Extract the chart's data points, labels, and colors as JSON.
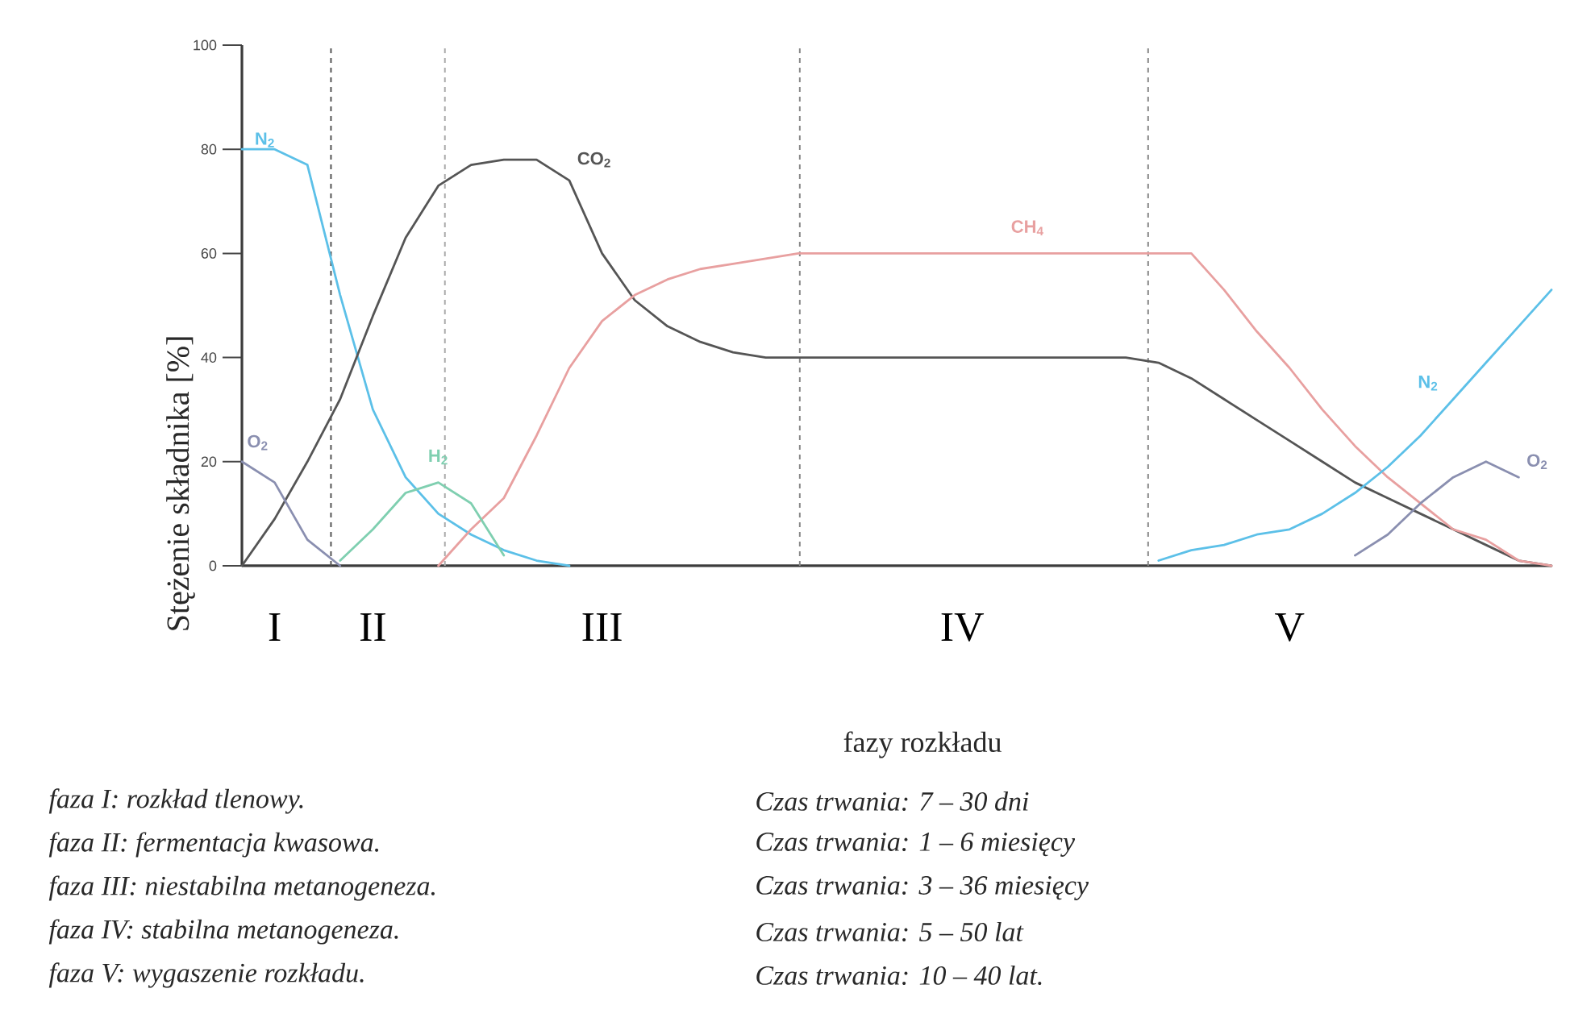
{
  "chart_data": {
    "type": "line",
    "ylabel": "Stężenie składnika [%]",
    "xlabel": "fazy rozkładu",
    "categories": [
      null,
      "I",
      null,
      null,
      "II",
      null,
      null,
      null,
      null,
      null,
      null,
      "III",
      null,
      null,
      null,
      null,
      null,
      null,
      null,
      null,
      null,
      null,
      "IV",
      null,
      null,
      null,
      null,
      null,
      null,
      null,
      null,
      null,
      "V",
      null,
      null,
      null,
      null,
      null,
      null,
      null,
      null
    ],
    "ylim": [
      0,
      100
    ],
    "yticks": [
      0,
      20,
      40,
      60,
      80,
      100
    ],
    "grid": "x",
    "legend": false,
    "marker": "none",
    "line_style": "solid",
    "series": [
      {
        "name": "N$_{2}$",
        "color": "#5cc0e8",
        "values": [
          80,
          80,
          77,
          52,
          30,
          17,
          10,
          6,
          3,
          1,
          0,
          null,
          null,
          null,
          null,
          null,
          null,
          null,
          null,
          null,
          null,
          null,
          null,
          null,
          null,
          null,
          null,
          null,
          null,
          null,
          null,
          null,
          null,
          null,
          null,
          null,
          null,
          null,
          null,
          null,
          null
        ]
      },
      {
        "name": "CO$_{2}$",
        "color": "#555555",
        "values": [
          0,
          9,
          20,
          32,
          48,
          63,
          73,
          77,
          78,
          78,
          74,
          60,
          51,
          46,
          43,
          41,
          40,
          40,
          40,
          40,
          40,
          40,
          40,
          40,
          40,
          40,
          40,
          40,
          39,
          36,
          32,
          28,
          24,
          20,
          16,
          13,
          10,
          7,
          4,
          1,
          0
        ]
      },
      {
        "name": "CH$_{4}$",
        "color": "#e8a0a0",
        "values": [
          null,
          null,
          null,
          null,
          null,
          null,
          0,
          7,
          13,
          25,
          38,
          47,
          52,
          55,
          57,
          58,
          59,
          60,
          60,
          60,
          60,
          60,
          60,
          60,
          60,
          60,
          60,
          60,
          60,
          60,
          53,
          45,
          38,
          30,
          23,
          17,
          12,
          7,
          5,
          1,
          0
        ]
      },
      {
        "name": "H$_{2}$",
        "color": "#7fcfb0",
        "values": [
          null,
          null,
          null,
          1,
          7,
          14,
          16,
          12,
          2,
          null,
          null,
          null,
          null,
          null,
          null,
          null,
          null,
          null,
          null,
          null,
          null,
          null,
          null,
          null,
          null,
          null,
          null,
          null,
          null,
          null,
          null,
          null,
          null,
          null,
          null,
          null,
          null,
          null,
          null,
          null,
          null
        ]
      },
      {
        "name": "O$_{2}$",
        "color": "#8a8fb0",
        "values": [
          20,
          16,
          5,
          0,
          null,
          null,
          null,
          null,
          null,
          null,
          null,
          null,
          null,
          null,
          null,
          null,
          null,
          null,
          null,
          null,
          null,
          null,
          null,
          null,
          null,
          null,
          null,
          null,
          null,
          null,
          null,
          null,
          null,
          null,
          null,
          null,
          null,
          null,
          null,
          null,
          null
        ]
      },
      {
        "name": "N$_{2}$",
        "color": "#5cc0e8",
        "values": [
          null,
          null,
          null,
          null,
          null,
          null,
          null,
          null,
          null,
          null,
          null,
          null,
          null,
          null,
          null,
          null,
          null,
          null,
          null,
          null,
          null,
          null,
          null,
          null,
          null,
          null,
          null,
          null,
          1,
          3,
          4,
          6,
          7,
          10,
          14,
          19,
          25,
          32,
          39,
          46,
          53
        ]
      },
      {
        "name": "O$_{2}$",
        "color": "#8a8fb0",
        "values": [
          null,
          null,
          null,
          null,
          null,
          null,
          null,
          null,
          null,
          null,
          null,
          null,
          null,
          null,
          null,
          null,
          null,
          null,
          null,
          null,
          null,
          null,
          null,
          null,
          null,
          null,
          null,
          null,
          null,
          null,
          null,
          null,
          null,
          null,
          2,
          6,
          12,
          17,
          20,
          17,
          null
        ]
      }
    ],
    "annotations": [
      "faza I:   rozkład tlenowy.",
      "Czas trwania: 7 – 30 dni",
      "faza II:  fermentacja kwasowa.",
      "Czas trwania: 1 – 6 miesięcy",
      "faza III: niestabilna metanogeneza.",
      "Czas trwania: 3 – 36 miesięcy",
      "faza IV: stabilna metanogeneza.",
      "Czas trwania: 5 – 50 lat",
      "faza V:  wygaszenie rozkładu.",
      "Czas trwania: 10 – 40 lat."
    ]
  }
}
